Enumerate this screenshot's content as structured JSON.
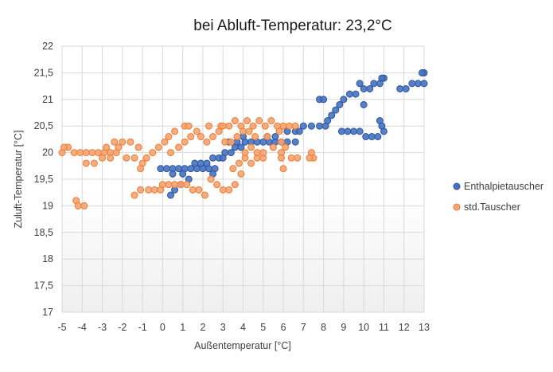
{
  "chart_data": {
    "type": "scatter",
    "title": "bei Abluft-Temperatur: 23,2°C",
    "xlabel": "Außentemperatur [°C]",
    "ylabel": "Zuluft-Temperatur [°C]",
    "xlim": [
      -5,
      13
    ],
    "ylim": [
      17,
      22
    ],
    "x_ticks": [
      -5,
      -4,
      -3,
      -2,
      -1,
      0,
      1,
      2,
      3,
      4,
      5,
      6,
      7,
      8,
      9,
      10,
      11,
      12,
      13
    ],
    "x_tick_labels": [
      "-5",
      "-4",
      "-3",
      "-2",
      "-1",
      "0",
      "1",
      "2",
      "3",
      "4",
      "5",
      "6",
      "7",
      "8",
      "9",
      "10",
      "11",
      "12",
      "13"
    ],
    "y_ticks": [
      17,
      17.5,
      18,
      18.5,
      19,
      19.5,
      20,
      20.5,
      21,
      21.5,
      22
    ],
    "y_tick_labels": [
      "17",
      "17,5",
      "18",
      "18,5",
      "19",
      "19,5",
      "20",
      "20,5",
      "21",
      "21,5",
      "22"
    ],
    "grid": true,
    "legend_position": "right",
    "series": [
      {
        "name": "Enthalpietauscher",
        "color": "#4472c4",
        "points": [
          [
            -0.1,
            19.7
          ],
          [
            0.2,
            19.7
          ],
          [
            0.5,
            19.7
          ],
          [
            0.8,
            19.7
          ],
          [
            1.1,
            19.7
          ],
          [
            1.4,
            19.7
          ],
          [
            1.7,
            19.7
          ],
          [
            2.0,
            19.7
          ],
          [
            2.3,
            19.7
          ],
          [
            2.6,
            19.7
          ],
          [
            0.4,
            19.2
          ],
          [
            0.6,
            19.3
          ],
          [
            0.9,
            19.4
          ],
          [
            0.5,
            19.6
          ],
          [
            1.0,
            19.6
          ],
          [
            1.3,
            19.5
          ],
          [
            1.6,
            19.8
          ],
          [
            1.9,
            19.8
          ],
          [
            2.2,
            19.8
          ],
          [
            2.5,
            19.9
          ],
          [
            2.8,
            19.9
          ],
          [
            3.1,
            20.0
          ],
          [
            3.4,
            20.0
          ],
          [
            3.6,
            20.1
          ],
          [
            3.9,
            20.1
          ],
          [
            3.3,
            20.2
          ],
          [
            3.7,
            20.2
          ],
          [
            4.1,
            20.2
          ],
          [
            4.4,
            20.2
          ],
          [
            4.7,
            20.2
          ],
          [
            5.0,
            20.2
          ],
          [
            5.3,
            20.2
          ],
          [
            5.6,
            20.2
          ],
          [
            5.9,
            20.2
          ],
          [
            6.2,
            20.2
          ],
          [
            6.6,
            20.2
          ],
          [
            5.2,
            20.3
          ],
          [
            5.6,
            20.3
          ],
          [
            6.2,
            20.4
          ],
          [
            6.6,
            20.4
          ],
          [
            7.0,
            20.5
          ],
          [
            7.4,
            20.5
          ],
          [
            7.8,
            20.5
          ],
          [
            8.1,
            20.5
          ],
          [
            6.8,
            20.4
          ],
          [
            8.2,
            20.6
          ],
          [
            8.4,
            20.7
          ],
          [
            8.6,
            20.8
          ],
          [
            8.8,
            20.9
          ],
          [
            9.0,
            21.0
          ],
          [
            9.3,
            21.1
          ],
          [
            9.6,
            21.1
          ],
          [
            10.0,
            21.2
          ],
          [
            10.3,
            21.2
          ],
          [
            10.5,
            21.3
          ],
          [
            10.8,
            21.3
          ],
          [
            11.0,
            21.4
          ],
          [
            10.9,
            21.4
          ],
          [
            9.8,
            21.3
          ],
          [
            7.8,
            21.0
          ],
          [
            8.0,
            21.0
          ],
          [
            8.9,
            20.4
          ],
          [
            9.2,
            20.4
          ],
          [
            9.5,
            20.4
          ],
          [
            9.8,
            20.4
          ],
          [
            10.1,
            20.3
          ],
          [
            10.4,
            20.3
          ],
          [
            10.7,
            20.3
          ],
          [
            10.8,
            20.6
          ],
          [
            10.9,
            20.5
          ],
          [
            11.0,
            20.4
          ],
          [
            10.0,
            20.9
          ],
          [
            11.8,
            21.2
          ],
          [
            12.1,
            21.2
          ],
          [
            12.4,
            21.3
          ],
          [
            12.7,
            21.3
          ],
          [
            13.0,
            21.3
          ],
          [
            13.0,
            21.5
          ],
          [
            12.9,
            21.5
          ],
          [
            2.5,
            19.6
          ],
          [
            3.0,
            19.9
          ],
          [
            4.0,
            20.3
          ]
        ]
      },
      {
        "name": "std.Tauscher",
        "color": "#ed7d31",
        "points": [
          [
            -5.0,
            20.0
          ],
          [
            -4.7,
            20.1
          ],
          [
            -4.4,
            20.0
          ],
          [
            -4.1,
            20.0
          ],
          [
            -3.8,
            20.0
          ],
          [
            -3.5,
            20.0
          ],
          [
            -3.2,
            20.0
          ],
          [
            -2.9,
            20.0
          ],
          [
            -2.6,
            20.0
          ],
          [
            -2.3,
            20.0
          ],
          [
            -4.9,
            20.1
          ],
          [
            -4.3,
            19.1
          ],
          [
            -4.2,
            19.0
          ],
          [
            -3.9,
            19.0
          ],
          [
            -3.8,
            19.8
          ],
          [
            -3.4,
            19.8
          ],
          [
            -3.0,
            19.9
          ],
          [
            -2.6,
            19.9
          ],
          [
            -2.2,
            20.1
          ],
          [
            -2.0,
            20.2
          ],
          [
            -1.6,
            20.2
          ],
          [
            -1.2,
            20.1
          ],
          [
            -2.8,
            20.1
          ],
          [
            -2.4,
            20.2
          ],
          [
            -1.8,
            19.9
          ],
          [
            -1.4,
            19.9
          ],
          [
            -1.0,
            19.8
          ],
          [
            -1.1,
            19.7
          ],
          [
            -1.4,
            19.2
          ],
          [
            -1.1,
            19.3
          ],
          [
            -0.7,
            19.3
          ],
          [
            -0.4,
            19.3
          ],
          [
            -0.1,
            19.3
          ],
          [
            -0.8,
            19.9
          ],
          [
            -0.5,
            20.0
          ],
          [
            -0.2,
            20.1
          ],
          [
            0.1,
            20.2
          ],
          [
            0.3,
            20.3
          ],
          [
            0.6,
            20.4
          ],
          [
            0.0,
            19.4
          ],
          [
            0.3,
            19.4
          ],
          [
            0.6,
            19.4
          ],
          [
            0.9,
            19.4
          ],
          [
            1.2,
            19.4
          ],
          [
            1.5,
            19.3
          ],
          [
            1.8,
            19.3
          ],
          [
            2.1,
            19.2
          ],
          [
            0.4,
            20.0
          ],
          [
            0.8,
            20.1
          ],
          [
            1.1,
            20.2
          ],
          [
            1.4,
            20.3
          ],
          [
            1.7,
            20.4
          ],
          [
            1.1,
            20.5
          ],
          [
            1.3,
            20.5
          ],
          [
            1.9,
            20.3
          ],
          [
            2.2,
            20.2
          ],
          [
            2.5,
            20.3
          ],
          [
            2.8,
            20.4
          ],
          [
            2.3,
            20.5
          ],
          [
            2.9,
            20.5
          ],
          [
            2.4,
            19.5
          ],
          [
            2.7,
            19.4
          ],
          [
            3.0,
            19.3
          ],
          [
            3.3,
            19.3
          ],
          [
            3.6,
            19.4
          ],
          [
            3.9,
            19.6
          ],
          [
            3.0,
            20.5
          ],
          [
            3.3,
            20.5
          ],
          [
            3.6,
            20.6
          ],
          [
            3.9,
            20.5
          ],
          [
            4.2,
            20.6
          ],
          [
            4.5,
            20.5
          ],
          [
            4.8,
            20.6
          ],
          [
            3.1,
            20.2
          ],
          [
            3.4,
            20.2
          ],
          [
            3.7,
            20.3
          ],
          [
            4.0,
            20.4
          ],
          [
            4.3,
            20.4
          ],
          [
            4.6,
            20.3
          ],
          [
            3.5,
            19.7
          ],
          [
            3.8,
            19.8
          ],
          [
            4.1,
            19.9
          ],
          [
            4.4,
            19.8
          ],
          [
            4.7,
            19.9
          ],
          [
            5.0,
            19.9
          ],
          [
            4.1,
            20.0
          ],
          [
            4.4,
            20.1
          ],
          [
            4.7,
            20.0
          ],
          [
            5.1,
            20.5
          ],
          [
            5.4,
            20.6
          ],
          [
            5.7,
            20.5
          ],
          [
            6.0,
            20.5
          ],
          [
            6.3,
            20.5
          ],
          [
            6.6,
            20.5
          ],
          [
            5.8,
            20.4
          ],
          [
            5.9,
            20.2
          ],
          [
            5.9,
            20.0
          ],
          [
            5.9,
            19.9
          ],
          [
            6.0,
            19.7
          ],
          [
            6.1,
            20.1
          ],
          [
            6.4,
            19.9
          ],
          [
            6.7,
            19.9
          ],
          [
            7.4,
            20.0
          ],
          [
            7.5,
            19.9
          ],
          [
            7.3,
            19.9
          ],
          [
            5.2,
            20.3
          ],
          [
            5.5,
            20.1
          ],
          [
            5.0,
            20.0
          ]
        ]
      }
    ]
  }
}
